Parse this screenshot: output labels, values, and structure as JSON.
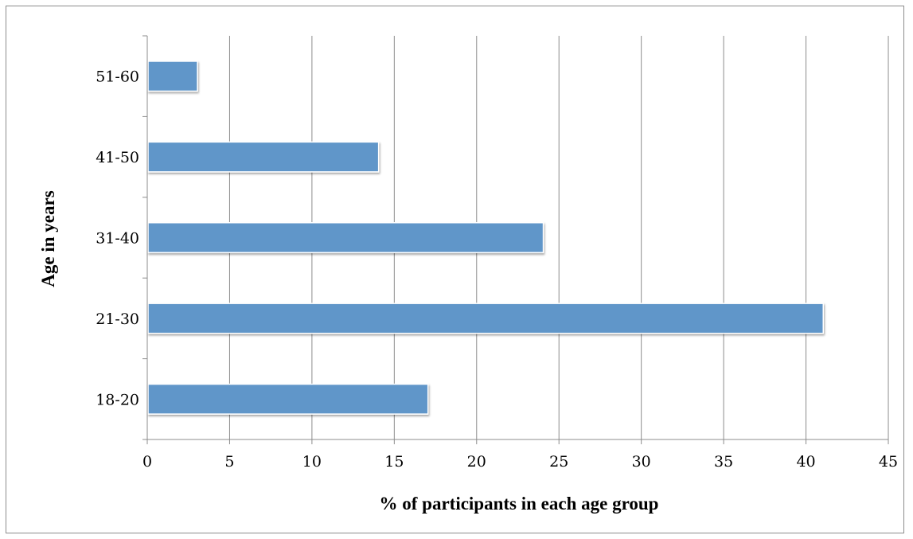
{
  "chart_data": {
    "type": "bar",
    "orientation": "horizontal",
    "categories": [
      "18-20",
      "21-30",
      "31-40",
      "41-50",
      "51-60"
    ],
    "values": [
      17,
      41,
      24,
      14,
      3
    ],
    "xlabel": "% of participants in each age group",
    "ylabel": "Age in years",
    "xlim": [
      0,
      45
    ],
    "xticks": [
      0,
      5,
      10,
      15,
      20,
      25,
      30,
      35,
      40,
      45
    ],
    "grid": "vertical major gridlines",
    "legend": "none",
    "colors": {
      "bar": "#6096c9",
      "gridline": "#8c8c8c",
      "axis": "#8c8c8c",
      "frame": "#8c8c8c"
    }
  }
}
